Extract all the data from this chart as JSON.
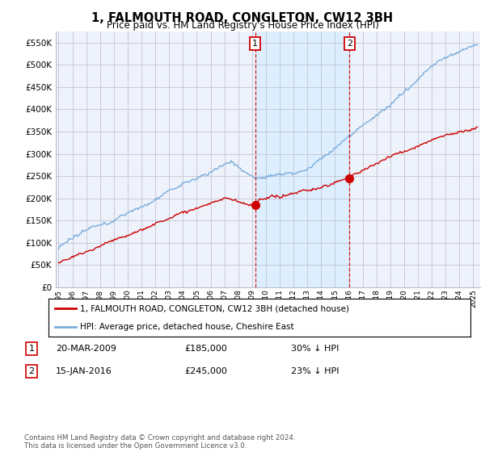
{
  "title": "1, FALMOUTH ROAD, CONGLETON, CW12 3BH",
  "subtitle": "Price paid vs. HM Land Registry's House Price Index (HPI)",
  "ylim": [
    0,
    575000
  ],
  "yticks": [
    0,
    50000,
    100000,
    150000,
    200000,
    250000,
    300000,
    350000,
    400000,
    450000,
    500000,
    550000
  ],
  "xlim_start": 1994.8,
  "xlim_end": 2025.5,
  "marker1_x": 2009.22,
  "marker1_y": 185000,
  "marker2_x": 2016.04,
  "marker2_y": 245000,
  "table_rows": [
    {
      "num": "1",
      "date": "20-MAR-2009",
      "price": "£185,000",
      "hpi": "30% ↓ HPI"
    },
    {
      "num": "2",
      "date": "15-JAN-2016",
      "price": "£245,000",
      "hpi": "23% ↓ HPI"
    }
  ],
  "legend_line1": "1, FALMOUTH ROAD, CONGLETON, CW12 3BH (detached house)",
  "legend_line2": "HPI: Average price, detached house, Cheshire East",
  "footer": "Contains HM Land Registry data © Crown copyright and database right 2024.\nThis data is licensed under the Open Government Licence v3.0.",
  "line_color_red": "#cc0000",
  "line_color_blue": "#7aaddb",
  "shade_color": "#ddeeff",
  "bg_color": "#eef2fb",
  "grid_color": "#bbbbcc",
  "title_fontsize": 10.5,
  "subtitle_fontsize": 8.5
}
